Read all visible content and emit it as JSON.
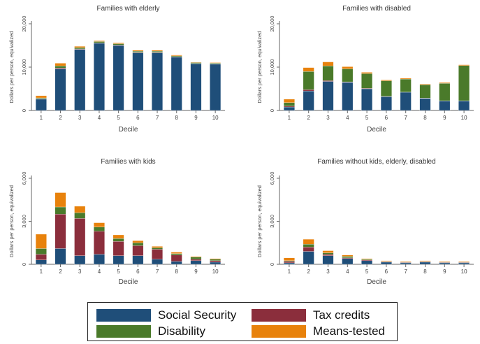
{
  "chart_data": [
    {
      "type": "bar",
      "title": "Families with elderly",
      "xlabel": "Decile",
      "ylabel": "Dollars per person, equivalized",
      "ylim": [
        0,
        20000
      ],
      "yticks": [
        0,
        10000,
        20000
      ],
      "ytick_labels": [
        "0",
        "10,000",
        "20,000"
      ],
      "categories": [
        "1",
        "2",
        "3",
        "4",
        "5",
        "6",
        "7",
        "8",
        "9",
        "10"
      ],
      "series": [
        {
          "name": "Social Security",
          "values": [
            2600,
            9600,
            14100,
            15500,
            15000,
            13300,
            13300,
            12300,
            10800,
            10700
          ]
        },
        {
          "name": "Tax credits",
          "values": [
            100,
            200,
            100,
            100,
            100,
            100,
            100,
            100,
            50,
            50
          ]
        },
        {
          "name": "Disability",
          "values": [
            200,
            500,
            300,
            300,
            300,
            300,
            300,
            200,
            200,
            200
          ]
        },
        {
          "name": "Means-tested",
          "values": [
            500,
            600,
            300,
            200,
            200,
            200,
            200,
            200,
            100,
            100
          ]
        }
      ]
    },
    {
      "type": "bar",
      "title": "Families with disabled",
      "xlabel": "Decile",
      "ylabel": "Dollars per person, equivalized",
      "ylim": [
        0,
        20000
      ],
      "yticks": [
        0,
        10000,
        20000
      ],
      "ytick_labels": [
        "0",
        "10,000",
        "20,000"
      ],
      "categories": [
        "1",
        "2",
        "3",
        "4",
        "5",
        "6",
        "7",
        "8",
        "9",
        "10"
      ],
      "series": [
        {
          "name": "Social Security",
          "values": [
            800,
            4500,
            6700,
            6500,
            5000,
            3200,
            4200,
            2800,
            2200,
            2200
          ]
        },
        {
          "name": "Tax credits",
          "values": [
            200,
            300,
            200,
            100,
            100,
            50,
            50,
            50,
            50,
            50
          ]
        },
        {
          "name": "Disability",
          "values": [
            800,
            4200,
            3400,
            3000,
            3400,
            3600,
            3000,
            3100,
            4000,
            8100
          ]
        },
        {
          "name": "Means-tested",
          "values": [
            800,
            900,
            900,
            500,
            300,
            200,
            200,
            150,
            200,
            200
          ]
        }
      ]
    },
    {
      "type": "bar",
      "title": "Families with kids",
      "xlabel": "Decile",
      "ylabel": "Dollars per person, equivalized",
      "ylim": [
        0,
        6000
      ],
      "yticks": [
        0,
        3000,
        6000
      ],
      "ytick_labels": [
        "0",
        "3,000",
        "6,000"
      ],
      "categories": [
        "1",
        "2",
        "3",
        "4",
        "5",
        "6",
        "7",
        "8",
        "9",
        "10"
      ],
      "series": [
        {
          "name": "Social Security",
          "values": [
            300,
            1100,
            600,
            700,
            600,
            600,
            350,
            200,
            250,
            150
          ]
        },
        {
          "name": "Tax credits",
          "values": [
            400,
            2400,
            2600,
            1600,
            1000,
            700,
            700,
            450,
            100,
            100
          ]
        },
        {
          "name": "Disability",
          "values": [
            400,
            500,
            400,
            300,
            200,
            200,
            100,
            100,
            150,
            100
          ]
        },
        {
          "name": "Means-tested",
          "values": [
            1000,
            1000,
            450,
            300,
            250,
            150,
            100,
            100,
            50,
            50
          ]
        }
      ]
    },
    {
      "type": "bar",
      "title": "Families without kids, elderly, disabled",
      "xlabel": "Decile",
      "ylabel": "Dollars per person, equivalized",
      "ylim": [
        0,
        6000
      ],
      "yticks": [
        0,
        3000,
        6000
      ],
      "ytick_labels": [
        "0",
        "3,000",
        "6,000"
      ],
      "categories": [
        "1",
        "2",
        "3",
        "4",
        "5",
        "6",
        "7",
        "8",
        "9",
        "10"
      ],
      "series": [
        {
          "name": "Social Security",
          "values": [
            100,
            900,
            600,
            400,
            250,
            150,
            100,
            150,
            100,
            100
          ]
        },
        {
          "name": "Tax credits",
          "values": [
            100,
            300,
            100,
            50,
            50,
            30,
            30,
            30,
            30,
            30
          ]
        },
        {
          "name": "Disability",
          "values": [
            50,
            200,
            100,
            100,
            50,
            30,
            30,
            30,
            30,
            30
          ]
        },
        {
          "name": "Means-tested",
          "values": [
            200,
            350,
            150,
            100,
            50,
            40,
            40,
            40,
            40,
            40
          ]
        }
      ]
    }
  ],
  "legend": [
    {
      "name": "Social Security",
      "color": "#1f4e79"
    },
    {
      "name": "Tax credits",
      "color": "#8b2e3c"
    },
    {
      "name": "Disability",
      "color": "#4a7a2a"
    },
    {
      "name": "Means-tested",
      "color": "#e8820c"
    }
  ],
  "colors": {
    "Social Security": "#1f4e79",
    "Tax credits": "#8b2e3c",
    "Disability": "#4a7a2a",
    "Means-tested": "#e8820c",
    "axis": "#666666"
  }
}
